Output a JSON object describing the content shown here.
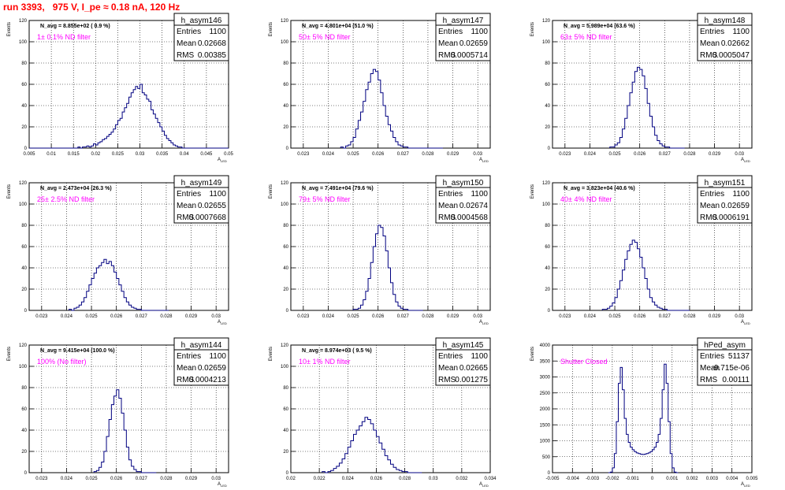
{
  "run_title": "run 3393,   975 V, I_pe ≈ 0.18 nA, 120 Hz",
  "colors": {
    "histogram": "#000080",
    "annotation": "#ff00ff",
    "title": "#ff0000",
    "grid": "#000000"
  },
  "stats_labels": {
    "entries": "Entries",
    "mean": "Mean",
    "rms": "RMS"
  },
  "chart_data": [
    {
      "type": "histogram",
      "name": "h_asym146",
      "entries": "1100",
      "mean": "0.02668",
      "rms": "0.00385",
      "navg": "N_avg = 8.855e+02 ( 0.9 %)",
      "annotation": "1± 0.1% ND filter",
      "ylabel": "Events",
      "xlabel": "A_{LED}",
      "grid": true,
      "xlim": [
        0.005,
        0.05
      ],
      "ylim": [
        0,
        120
      ],
      "xticks": [
        "0.005",
        "0.01",
        "0.015",
        "0.02",
        "0.025",
        "0.03",
        "0.035",
        "0.04",
        "0.045",
        "0.05"
      ],
      "yticks": [
        "0",
        "20",
        "40",
        "60",
        "80",
        "100",
        "120"
      ],
      "bins": {
        "start": 0.005,
        "width": 0.0005,
        "counts": [
          0,
          0,
          0,
          0,
          0,
          0,
          0,
          0,
          0,
          0,
          0,
          0,
          0,
          0,
          0,
          0,
          0,
          0,
          0,
          0,
          0,
          0,
          1,
          0,
          1,
          1,
          2,
          1,
          2,
          4,
          3,
          5,
          6,
          8,
          9,
          11,
          13,
          15,
          18,
          22,
          26,
          28,
          34,
          38,
          42,
          48,
          52,
          55,
          58,
          56,
          60,
          52,
          50,
          46,
          44,
          36,
          32,
          28,
          24,
          20,
          16,
          12,
          9,
          7,
          5,
          3,
          2,
          1,
          1,
          0,
          0,
          0,
          0,
          0,
          0,
          0,
          0,
          0,
          0,
          0,
          0,
          0,
          0,
          0,
          0,
          0,
          0,
          0,
          0,
          0
        ]
      }
    },
    {
      "type": "histogram",
      "name": "h_asym147",
      "entries": "1100",
      "mean": "0.02659",
      "rms": "0.0005714",
      "navg": "N_avg = 4.801e+04 (51.0 %)",
      "annotation": "50± 5% ND filter",
      "ylabel": "Events",
      "xlabel": "A_{LED}",
      "grid": true,
      "xlim": [
        0.0225,
        0.0305
      ],
      "ylim": [
        0,
        120
      ],
      "xticks": [
        "0.023",
        "0.024",
        "0.025",
        "0.026",
        "0.027",
        "0.028",
        "0.029",
        "0.03"
      ],
      "yticks": [
        "0",
        "20",
        "40",
        "60",
        "80",
        "100",
        "120"
      ],
      "bins": {
        "start": 0.0245,
        "width": 0.0001,
        "counts": [
          1,
          0,
          2,
          3,
          6,
          10,
          18,
          26,
          34,
          44,
          55,
          62,
          70,
          74,
          72,
          64,
          52,
          40,
          30,
          22,
          16,
          10,
          6,
          3,
          2,
          1,
          1,
          0,
          0,
          0,
          0,
          0,
          0,
          0,
          0,
          0,
          0,
          0,
          0,
          0,
          0
        ]
      }
    },
    {
      "type": "histogram",
      "name": "h_asym148",
      "entries": "1100",
      "mean": "0.02662",
      "rms": "0.0005047",
      "navg": "N_avg = 5.989e+04 (63.6 %)",
      "annotation": "63± 5% ND filter",
      "ylabel": "Events",
      "xlabel": "A_{LED}",
      "grid": true,
      "xlim": [
        0.0225,
        0.0305
      ],
      "ylim": [
        0,
        120
      ],
      "xticks": [
        "0.023",
        "0.024",
        "0.025",
        "0.026",
        "0.027",
        "0.028",
        "0.029",
        "0.03"
      ],
      "yticks": [
        "0",
        "20",
        "40",
        "60",
        "80",
        "100",
        "120"
      ],
      "bins": {
        "start": 0.0248,
        "width": 0.0001,
        "counts": [
          1,
          1,
          3,
          5,
          10,
          18,
          28,
          40,
          52,
          62,
          72,
          76,
          74,
          68,
          56,
          42,
          30,
          20,
          12,
          7,
          4,
          2,
          1,
          1,
          0,
          0,
          0,
          0,
          0,
          0
        ]
      }
    },
    {
      "type": "histogram",
      "name": "h_asym149",
      "entries": "1100",
      "mean": "0.02655",
      "rms": "0.0007668",
      "navg": "N_avg = 2.473e+04 (26.3 %)",
      "annotation": "25± 2.5% ND filter",
      "ylabel": "Events",
      "xlabel": "A_{LED}",
      "grid": true,
      "xlim": [
        0.0225,
        0.0305
      ],
      "ylim": [
        0,
        120
      ],
      "xticks": [
        "0.023",
        "0.024",
        "0.025",
        "0.026",
        "0.027",
        "0.028",
        "0.029",
        "0.03"
      ],
      "yticks": [
        "0",
        "20",
        "40",
        "60",
        "80",
        "100",
        "120"
      ],
      "bins": {
        "start": 0.0241,
        "width": 0.0001,
        "counts": [
          1,
          0,
          2,
          3,
          5,
          8,
          12,
          18,
          24,
          30,
          35,
          40,
          42,
          45,
          48,
          44,
          46,
          42,
          36,
          30,
          24,
          18,
          12,
          8,
          5,
          3,
          2,
          1,
          1,
          0,
          0,
          0,
          0,
          0,
          0,
          0,
          0,
          0,
          0,
          0
        ]
      }
    },
    {
      "type": "histogram",
      "name": "h_asym150",
      "entries": "1100",
      "mean": "0.02674",
      "rms": "0.0004568",
      "navg": "N_avg = 7.491e+04 (79.6 %)",
      "annotation": "79± 5% ND filter",
      "ylabel": "Events",
      "xlabel": "A_{LED}",
      "grid": true,
      "xlim": [
        0.0225,
        0.0305
      ],
      "ylim": [
        0,
        120
      ],
      "xticks": [
        "0.023",
        "0.024",
        "0.025",
        "0.026",
        "0.027",
        "0.028",
        "0.029",
        "0.03"
      ],
      "yticks": [
        "0",
        "20",
        "40",
        "60",
        "80",
        "100",
        "120"
      ],
      "bins": {
        "start": 0.025,
        "width": 0.0001,
        "counts": [
          1,
          1,
          2,
          5,
          10,
          18,
          30,
          45,
          60,
          72,
          80,
          78,
          70,
          56,
          40,
          26,
          15,
          8,
          4,
          2,
          1,
          1,
          0,
          0,
          0,
          0,
          0,
          0
        ]
      }
    },
    {
      "type": "histogram",
      "name": "h_asym151",
      "entries": "1100",
      "mean": "0.02659",
      "rms": "0.0006191",
      "navg": "N_avg = 3.823e+04 (40.6 %)",
      "annotation": "40± 4% ND filter",
      "ylabel": "Events",
      "xlabel": "A_{LED}",
      "grid": true,
      "xlim": [
        0.0225,
        0.0305
      ],
      "ylim": [
        0,
        120
      ],
      "xticks": [
        "0.023",
        "0.024",
        "0.025",
        "0.026",
        "0.027",
        "0.028",
        "0.029",
        "0.03"
      ],
      "yticks": [
        "0",
        "20",
        "40",
        "60",
        "80",
        "100",
        "120"
      ],
      "bins": {
        "start": 0.0245,
        "width": 0.0001,
        "counts": [
          1,
          1,
          2,
          4,
          7,
          12,
          20,
          28,
          38,
          48,
          56,
          62,
          66,
          64,
          58,
          50,
          40,
          30,
          20,
          12,
          8,
          5,
          3,
          2,
          1,
          1,
          0,
          0,
          0,
          0,
          0,
          0,
          0,
          0,
          0
        ]
      }
    },
    {
      "type": "histogram",
      "name": "h_asym144",
      "entries": "1100",
      "mean": "0.02659",
      "rms": "0.0004213",
      "navg": "N_avg = 9.415e+04 (100.0 %)",
      "annotation": "100% (No filter)",
      "ylabel": "Events",
      "xlabel": "A_{LED}",
      "grid": true,
      "xlim": [
        0.0225,
        0.0305
      ],
      "ylim": [
        0,
        120
      ],
      "xticks": [
        "0.023",
        "0.024",
        "0.025",
        "0.026",
        "0.027",
        "0.028",
        "0.029",
        "0.03"
      ],
      "yticks": [
        "0",
        "20",
        "40",
        "60",
        "80",
        "100",
        "120"
      ],
      "bins": {
        "start": 0.0251,
        "width": 0.0001,
        "counts": [
          1,
          2,
          5,
          10,
          20,
          34,
          50,
          64,
          72,
          78,
          70,
          56,
          40,
          24,
          12,
          6,
          3,
          1,
          1,
          0,
          0,
          0,
          0,
          0,
          0
        ]
      }
    },
    {
      "type": "histogram",
      "name": "h_asym145",
      "entries": "1100",
      "mean": "0.02665",
      "rms": "0.001275",
      "navg": "N_avg = 8.974e+03 ( 9.5 %)",
      "annotation": "10± 1% ND filter",
      "ylabel": "Events",
      "xlabel": "A_{LED}",
      "grid": true,
      "xlim": [
        0.02,
        0.034
      ],
      "ylim": [
        0,
        120
      ],
      "xticks": [
        "0.02",
        "0.022",
        "0.024",
        "0.026",
        "0.028",
        "0.03",
        "0.032",
        "0.034"
      ],
      "yticks": [
        "0",
        "20",
        "40",
        "60",
        "80",
        "100",
        "120"
      ],
      "bins": {
        "start": 0.0222,
        "width": 0.0002,
        "counts": [
          1,
          0,
          1,
          2,
          4,
          6,
          9,
          13,
          18,
          24,
          30,
          36,
          40,
          44,
          48,
          52,
          50,
          46,
          40,
          34,
          28,
          22,
          16,
          12,
          8,
          5,
          3,
          2,
          1,
          1,
          0,
          0,
          0,
          0,
          0
        ]
      }
    },
    {
      "type": "histogram",
      "name": "hPed_asym",
      "entries": "51137",
      "mean": "-9.715e-06",
      "rms": "0.00111",
      "navg": "",
      "annotation": "Shutter Closed",
      "ylabel": "Events",
      "xlabel": "A_{LED}",
      "grid": true,
      "xlim": [
        -0.005,
        0.005
      ],
      "ylim": [
        0,
        4000
      ],
      "xticks": [
        "-0.005",
        "-0.004",
        "-0.003",
        "-0.002",
        "-0.001",
        "0",
        "0.001",
        "0.002",
        "0.003",
        "0.004",
        "0.005"
      ],
      "yticks": [
        "0",
        "500",
        "1000",
        "1500",
        "2000",
        "2500",
        "3000",
        "3500",
        "4000"
      ],
      "bins": {
        "start": -0.0022,
        "width": 0.0001,
        "counts": [
          0,
          20,
          150,
          600,
          1600,
          2800,
          3300,
          2600,
          1700,
          1200,
          950,
          800,
          720,
          660,
          620,
          600,
          580,
          570,
          580,
          600,
          620,
          660,
          720,
          800,
          950,
          1200,
          1700,
          2600,
          3400,
          2800,
          1600,
          600,
          150,
          20,
          0
        ]
      }
    }
  ]
}
